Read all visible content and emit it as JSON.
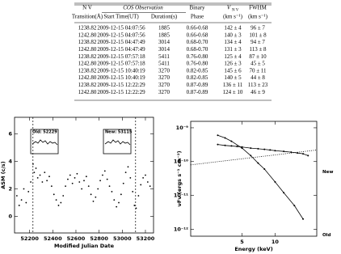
{
  "table": {
    "header_top": [
      "N V",
      "COS Observation",
      "Binary",
      "V",
      "FWHM"
    ],
    "v_subscript": "N V",
    "header_bottom": [
      "Transition(Å)",
      "Start Time(UT)",
      "Duration(s)",
      "Phase",
      "(km s⁻¹)",
      "(km s⁻¹)"
    ],
    "rows": [
      [
        "1238.82",
        "2009-12-15 04:07:56",
        "1885",
        "0.66-0.68",
        "142 ± 4",
        "96 ± 7"
      ],
      [
        "1242.80",
        "2009-12-15 04:07:56",
        "1885",
        "0.66-0.68",
        "140 ± 3",
        "101 ± 8"
      ],
      [
        "1238.82",
        "2009-12-15 04:47:49",
        "3014",
        "0.68-0.70",
        "134 ± 4",
        "94 ± 7"
      ],
      [
        "1242.80",
        "2009-12-15 04:47:49",
        "3014",
        "0.68-0.70",
        "131 ± 3",
        "113 ± 8"
      ],
      [
        "1238.82",
        "2009-12-15 07:57:18",
        "5411",
        "0.76-0.80",
        "125 ± 4",
        "87 ± 10"
      ],
      [
        "1242.80",
        "2009-12-15 07:57:18",
        "5411",
        "0.76-0.80",
        "126 ± 3",
        "45 ± 5"
      ],
      [
        "1238.82",
        "2009-12-15 10:40:19",
        "3270",
        "0.82-0.85",
        "145 ± 6",
        "70 ± 11"
      ],
      [
        "1242.80",
        "2009-12-15 10:40:19",
        "3270",
        "0.82-0.85",
        "140 ± 5",
        "44 ± 8"
      ],
      [
        "1238.82",
        "2009-12-15 12:22:29",
        "3270",
        "0.87-0.89",
        "136 ± 11",
        "113 ± 23"
      ],
      [
        "1242.80",
        "2009-12-15 12:22:29",
        "3270",
        "0.87-0.89",
        "124 ± 10",
        "46 ± 9"
      ]
    ]
  },
  "figures": [
    {
      "type": "scatter",
      "x_label": "Modified Julian Date",
      "y_label": "ASM (c/s)",
      "xlim": [
        52070,
        53270
      ],
      "ylim": [
        -1.2,
        7.2
      ],
      "xticks": [
        52200,
        52400,
        52600,
        52800,
        53000,
        53200
      ],
      "yticks": [
        0,
        2,
        4,
        6
      ],
      "markers": [
        52229,
        53115
      ],
      "annotations": [
        "Old: 52229",
        "New: 53115"
      ],
      "color": "#000000",
      "x": [
        52090,
        52110,
        52130,
        52150,
        52170,
        52190,
        52210,
        52230,
        52240,
        52255,
        52270,
        52290,
        52310,
        52330,
        52350,
        52370,
        52390,
        52410,
        52430,
        52450,
        52470,
        52490,
        52510,
        52530,
        52550,
        52570,
        52590,
        52610,
        52630,
        52650,
        52670,
        52690,
        52710,
        52730,
        52750,
        52770,
        52790,
        52810,
        52830,
        52850,
        52870,
        52890,
        52910,
        52930,
        52950,
        52970,
        52990,
        53010,
        53030,
        53050,
        53070,
        53090,
        53105,
        53120,
        53140,
        53160,
        53180,
        53200,
        53220,
        53240
      ],
      "values": [
        1.5,
        0.8,
        1.2,
        2.0,
        1.0,
        1.8,
        2.5,
        3.8,
        3.2,
        3.5,
        2.8,
        3.0,
        2.5,
        3.2,
        2.6,
        2.9,
        2.2,
        1.6,
        1.2,
        0.8,
        1.0,
        1.5,
        2.2,
        2.7,
        3.0,
        2.4,
        2.8,
        3.1,
        2.5,
        2.0,
        2.6,
        2.9,
        2.2,
        1.6,
        1.1,
        1.4,
        2.0,
        2.6,
        3.0,
        3.3,
        2.7,
        2.2,
        1.8,
        1.2,
        0.7,
        1.0,
        1.6,
        2.4,
        3.2,
        3.6,
        2.8,
        1.8,
        0.8,
        0.6,
        1.5,
        2.3,
        2.8,
        3.0,
        2.5,
        2.2
      ]
    },
    {
      "type": "line",
      "x_label": "Energy (keV)",
      "y_label": "νFν (ergs s⁻¹ cm⁻²)",
      "log_x": true,
      "log_y": true,
      "xlim": [
        1.7,
        24
      ],
      "ylim": [
        6.2e-13,
        1.55e-09
      ],
      "xticks": [
        5,
        10
      ],
      "yticks": [
        {
          "value": 1e-09,
          "label": "10⁻⁹"
        },
        {
          "value": 1e-10,
          "label": "10⁻¹⁰"
        },
        {
          "value": 1e-11,
          "label": "10⁻¹¹"
        },
        {
          "value": 1e-12,
          "label": "10⁻¹²"
        }
      ],
      "series": [
        {
          "name": "New",
          "color": "#000000",
          "x": [
            3,
            3.5,
            4,
            4.5,
            5,
            6,
            7,
            8,
            9,
            10,
            12,
            14,
            16,
            18,
            20
          ],
          "values": [
            3.2e-10,
            3e-10,
            2.9e-10,
            2.8e-10,
            2.7e-10,
            2.5e-10,
            2.4e-10,
            2.3e-10,
            2.2e-10,
            2.1e-10,
            2e-10,
            1.9e-10,
            1.8e-10,
            1.7e-10,
            1.5e-10
          ]
        },
        {
          "name": "Old",
          "color": "#000000",
          "x": [
            3,
            3.5,
            4,
            5,
            6,
            7,
            8,
            10,
            12,
            15,
            18
          ],
          "values": [
            6e-10,
            5e-10,
            4e-10,
            2.5e-10,
            1.5e-10,
            9e-11,
            6e-11,
            2.5e-11,
            1.2e-11,
            5e-12,
            2e-12
          ]
        },
        {
          "color": "#000000",
          "dotted": true,
          "x": [
            1.7,
            24
          ],
          "values": [
            8e-11,
            2.2e-10
          ]
        }
      ]
    }
  ]
}
